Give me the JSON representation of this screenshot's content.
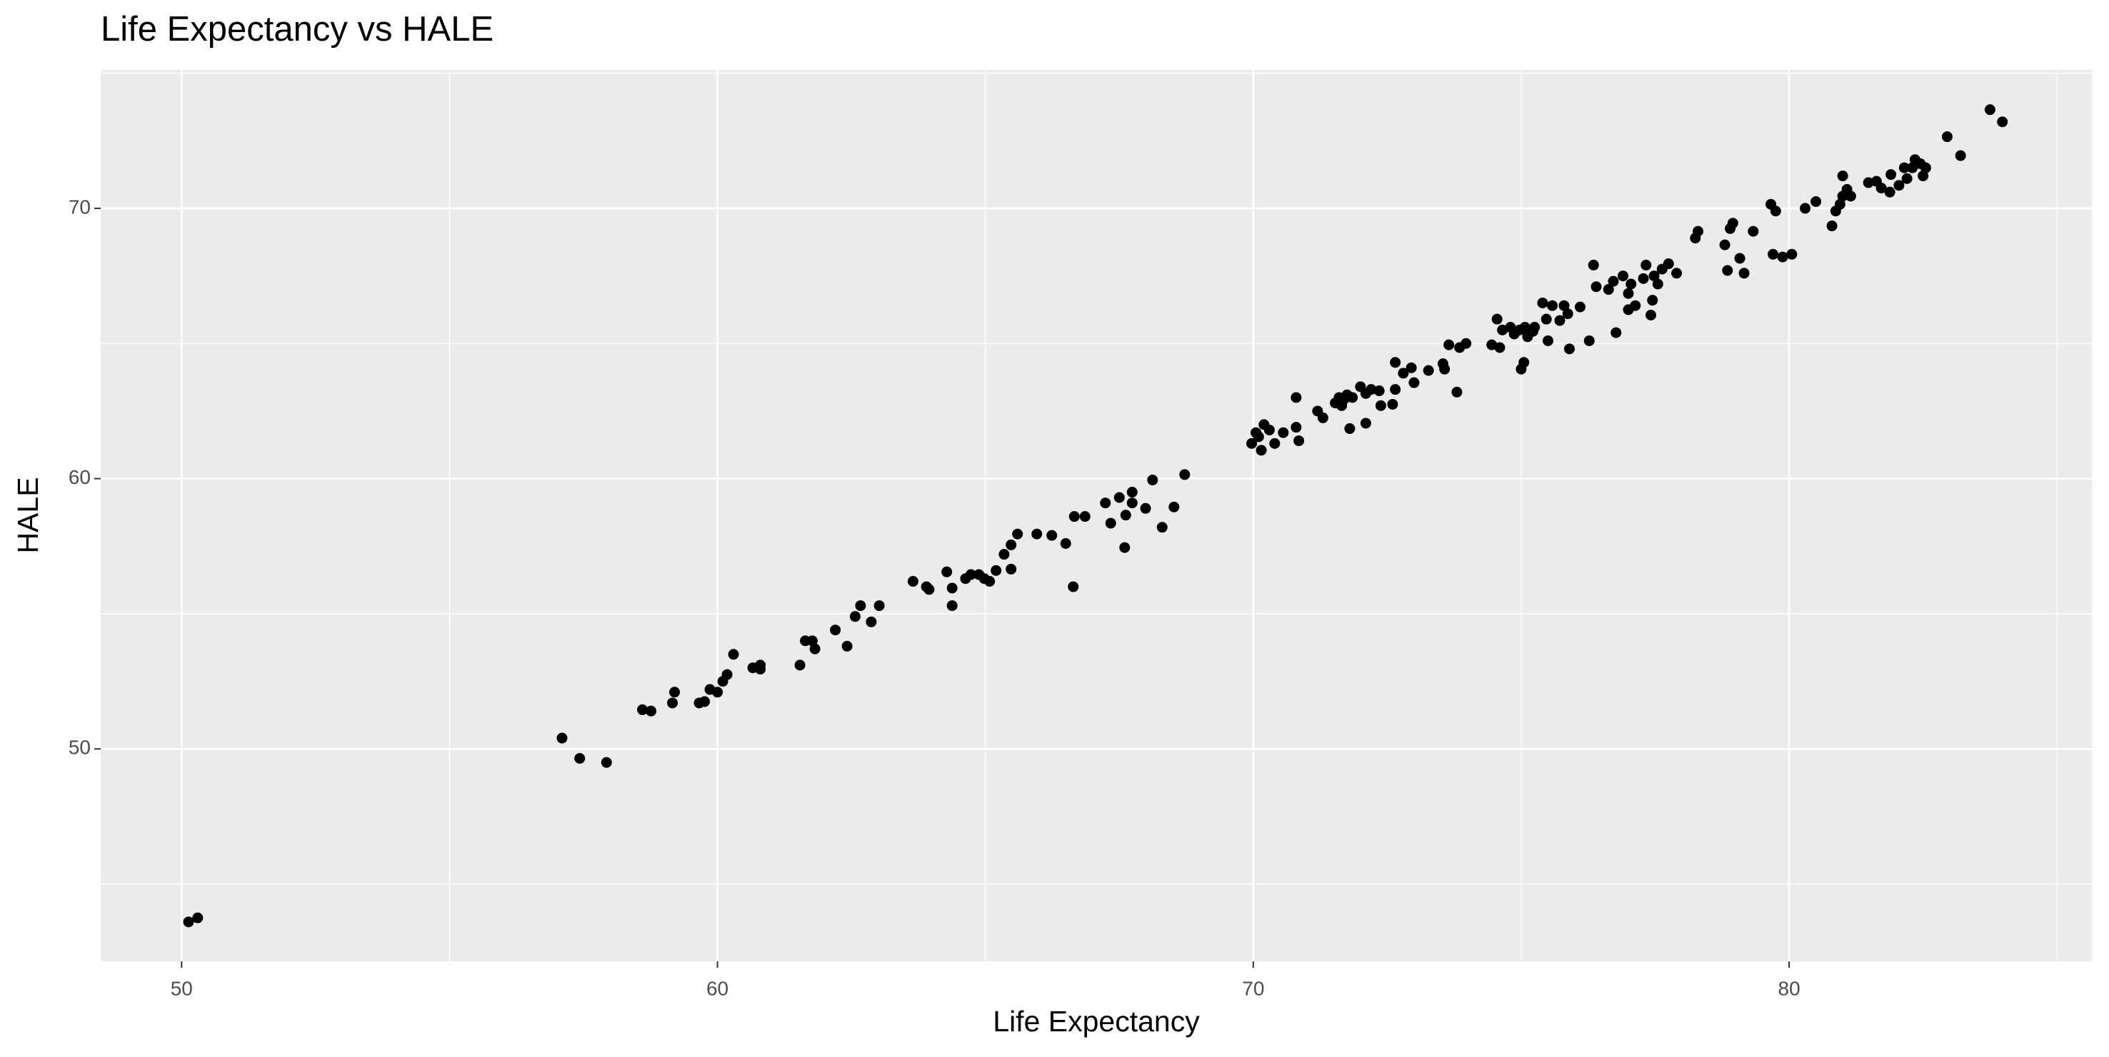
{
  "chart_data": {
    "type": "scatter",
    "title": "Life Expectancy vs HALE",
    "x_label": "Life Expectancy",
    "y_label": "HALE",
    "xlim": [
      48.49,
      85.65
    ],
    "ylim": [
      42.14,
      75.12
    ],
    "xticks": [
      50,
      60,
      70,
      80
    ],
    "yticks": [
      50,
      60,
      70
    ],
    "x_minor_grid": [
      55,
      65,
      75,
      85
    ],
    "y_minor_grid": [
      45,
      55,
      65,
      75
    ],
    "grid": true,
    "background": "#ebebeb",
    "color": "#000000",
    "x": [
      50.13,
      50.3,
      57.1,
      57.43,
      57.93,
      58.6,
      58.76,
      59.16,
      59.2,
      59.66,
      59.76,
      59.86,
      60.0,
      60.1,
      60.18,
      60.3,
      60.66,
      60.8,
      60.8,
      61.54,
      61.64,
      61.77,
      61.82,
      62.2,
      62.42,
      62.57,
      62.67,
      62.87,
      63.02,
      63.65,
      63.9,
      63.95,
      64.28,
      64.38,
      64.38,
      64.63,
      64.73,
      64.88,
      64.98,
      65.08,
      65.2,
      65.35,
      65.48,
      65.48,
      65.6,
      65.96,
      66.24,
      66.5,
      66.64,
      66.66,
      66.86,
      67.24,
      67.34,
      67.5,
      67.6,
      67.62,
      67.74,
      67.74,
      67.99,
      68.12,
      68.3,
      68.52,
      68.72,
      69.97,
      70.05,
      70.1,
      70.15,
      70.2,
      70.3,
      70.4,
      70.56,
      70.8,
      70.8,
      70.85,
      71.2,
      71.3,
      71.53,
      71.6,
      71.65,
      71.7,
      71.75,
      71.8,
      71.85,
      72.0,
      72.1,
      72.1,
      72.2,
      72.35,
      72.38,
      72.6,
      72.65,
      72.65,
      72.8,
      72.95,
      73.0,
      73.27,
      73.54,
      73.57,
      73.65,
      73.8,
      73.85,
      73.97,
      74.45,
      74.55,
      74.6,
      74.65,
      74.8,
      74.87,
      74.97,
      75.0,
      75.05,
      75.07,
      75.12,
      75.22,
      75.25,
      75.4,
      75.47,
      75.5,
      75.58,
      75.72,
      75.8,
      75.87,
      75.9,
      76.1,
      76.27,
      76.35,
      76.4,
      76.63,
      76.72,
      76.77,
      76.9,
      77.0,
      77.0,
      77.05,
      77.13,
      77.28,
      77.33,
      77.42,
      77.45,
      77.48,
      77.55,
      77.63,
      77.75,
      77.9,
      78.25,
      78.3,
      78.8,
      78.85,
      78.9,
      78.95,
      79.08,
      79.16,
      79.33,
      79.66,
      79.7,
      79.75,
      79.88,
      80.05,
      80.3,
      80.5,
      80.8,
      80.87,
      80.95,
      81.0,
      81.0,
      81.08,
      81.15,
      81.48,
      81.63,
      81.72,
      81.88,
      81.9,
      82.05,
      82.15,
      82.2,
      82.3,
      82.35,
      82.45,
      82.5,
      82.55,
      82.95,
      83.2,
      83.75,
      83.98
    ],
    "y": [
      43.6,
      43.75,
      50.4,
      49.65,
      49.5,
      51.45,
      51.4,
      51.7,
      52.1,
      51.7,
      51.75,
      52.2,
      52.1,
      52.5,
      52.75,
      53.5,
      53.0,
      53.1,
      52.95,
      53.1,
      54.0,
      54.0,
      53.7,
      54.4,
      53.8,
      54.9,
      55.3,
      54.7,
      55.3,
      56.2,
      56.0,
      55.9,
      56.55,
      55.95,
      55.3,
      56.3,
      56.45,
      56.45,
      56.3,
      56.2,
      56.6,
      57.2,
      56.65,
      57.55,
      57.95,
      57.95,
      57.9,
      57.6,
      56.0,
      58.6,
      58.6,
      59.1,
      58.35,
      59.3,
      57.45,
      58.65,
      59.5,
      59.1,
      58.9,
      59.95,
      58.2,
      58.95,
      60.15,
      61.3,
      61.7,
      61.55,
      61.05,
      62.0,
      61.8,
      61.3,
      61.7,
      63.0,
      61.9,
      61.4,
      62.5,
      62.25,
      62.8,
      63.0,
      62.7,
      62.95,
      63.1,
      61.85,
      63.0,
      63.4,
      62.05,
      63.15,
      63.3,
      63.25,
      62.7,
      62.75,
      64.3,
      63.3,
      63.9,
      64.1,
      63.55,
      64.0,
      64.25,
      64.05,
      64.95,
      63.2,
      64.85,
      65.0,
      64.95,
      65.9,
      64.85,
      65.5,
      65.6,
      65.35,
      65.5,
      64.05,
      64.3,
      65.6,
      65.25,
      65.45,
      65.6,
      66.5,
      65.9,
      65.1,
      66.4,
      65.85,
      66.4,
      66.1,
      64.8,
      66.35,
      65.1,
      67.9,
      67.1,
      67.0,
      67.3,
      65.4,
      67.5,
      66.85,
      66.25,
      67.2,
      66.4,
      67.4,
      67.9,
      66.05,
      66.6,
      67.5,
      67.2,
      67.75,
      67.95,
      67.6,
      68.9,
      69.15,
      68.65,
      67.7,
      69.25,
      69.45,
      68.15,
      67.6,
      69.15,
      70.15,
      68.3,
      69.9,
      68.2,
      68.3,
      70.0,
      70.25,
      69.35,
      69.9,
      70.15,
      71.2,
      70.45,
      70.7,
      70.45,
      70.95,
      71.0,
      70.75,
      70.6,
      71.25,
      70.85,
      71.5,
      71.1,
      71.5,
      71.8,
      71.65,
      71.2,
      71.5,
      72.65,
      71.95,
      73.65,
      73.2
    ]
  }
}
